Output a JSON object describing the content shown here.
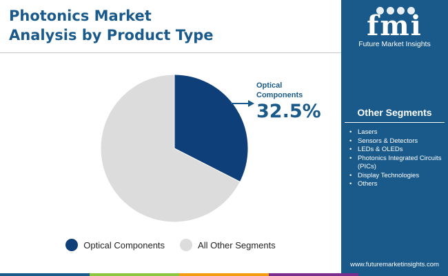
{
  "header": {
    "title_line1": "Photonics Market",
    "title_line2": "Analysis by Product Type"
  },
  "brand": {
    "logo_text": "fmi",
    "logo_subtitle": "Future Market Insights",
    "website": "www.futuremarketinsights.com",
    "color": "#1a5a8a"
  },
  "other_segments": {
    "title": "Other Segments",
    "items": [
      "Lasers",
      "Sensors & Detectors",
      "LEDs & OLEDs",
      "Photonics Integrated Circuits (PICs)",
      "Display Technologies",
      "Others"
    ]
  },
  "callout": {
    "name_line1": "Optical",
    "name_line2": "Components",
    "value_text": "32.5%"
  },
  "chart_data": {
    "type": "pie",
    "title": "Photonics Market Analysis by Product Type",
    "slices": [
      {
        "label": "Optical Components",
        "value": 32.5,
        "color": "#0e3f78"
      },
      {
        "label": "All Other Segments",
        "value": 67.5,
        "color": "#dcdcdc"
      }
    ],
    "legend_position": "bottom"
  },
  "legend": {
    "items": [
      {
        "label": "Optical Components",
        "color": "#0e3f78"
      },
      {
        "label": "All Other Segments",
        "color": "#dcdcdc"
      }
    ]
  },
  "bottom_bar_colors": [
    "#1a5a8a",
    "#8cc63f",
    "#f39c12",
    "#7b2d8e",
    "#1a5a8a"
  ]
}
